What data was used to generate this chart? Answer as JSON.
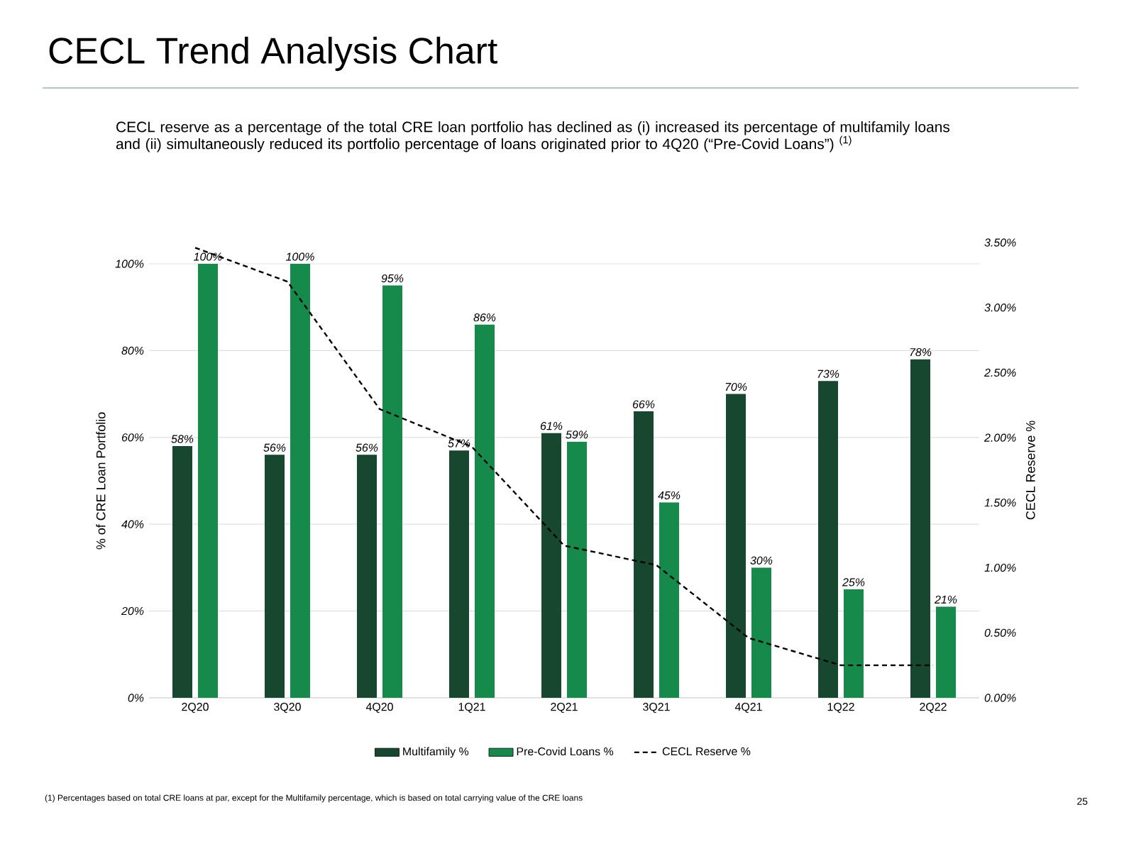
{
  "chart_data": {
    "type": "bar",
    "title": "CECL Trend Analysis Chart",
    "subtitle": "CECL reserve as a percentage of the total CRE loan portfolio has declined as (i) increased its percentage of multifamily loans and (ii) simultaneously reduced its portfolio percentage of loans originated prior to 4Q20 (“Pre-Covid Loans”) $^{(1)}$",
    "categories": [
      "2Q20",
      "3Q20",
      "4Q20",
      "1Q21",
      "2Q21",
      "3Q21",
      "4Q21",
      "1Q22",
      "2Q22"
    ],
    "series": [
      {
        "name": "Multifamily %",
        "color": "#18472f",
        "values": [
          58,
          56,
          56,
          57,
          61,
          66,
          70,
          73,
          78
        ],
        "value_labels": [
          "58%",
          "56%",
          "56%",
          "57%",
          "61%",
          "66%",
          "70%",
          "73%",
          "78%"
        ]
      },
      {
        "name": "Pre-Covid Loans %",
        "color": "#168a4a",
        "values": [
          100,
          100,
          95,
          86,
          59,
          45,
          30,
          25,
          21
        ],
        "value_labels": [
          "100%",
          "100%",
          "95%",
          "86%",
          "59%",
          "45%",
          "30%",
          "25%",
          "21%"
        ]
      },
      {
        "name": "CECL Reserve %",
        "type": "line",
        "axis": "y2",
        "color": "#000000",
        "line_style": "dashed",
        "values": [
          3.46,
          3.2,
          2.22,
          1.93,
          1.17,
          1.02,
          0.46,
          0.25,
          0.25
        ]
      }
    ],
    "ylabel": "% of CRE Loan Portfolio",
    "y2label": "CECL Reserve %",
    "ylim": [
      0,
      100
    ],
    "yticks": [
      {
        "value": 0,
        "label": "0%"
      },
      {
        "value": 20,
        "label": "20%"
      },
      {
        "value": 40,
        "label": "40%"
      },
      {
        "value": 60,
        "label": "60%"
      },
      {
        "value": 80,
        "label": "80%"
      },
      {
        "value": 100,
        "label": "100%"
      }
    ],
    "y2lim": [
      0,
      3.5
    ],
    "y2ticks": [
      {
        "value": 0,
        "label": "0.00%"
      },
      {
        "value": 0.5,
        "label": "0.50%"
      },
      {
        "value": 1,
        "label": "1.00%"
      },
      {
        "value": 1.5,
        "label": "1.50%"
      },
      {
        "value": 2,
        "label": "2.00%"
      },
      {
        "value": 2.5,
        "label": "2.50%"
      },
      {
        "value": 3,
        "label": "3.00%"
      },
      {
        "value": 3.5,
        "label": "3.50%"
      }
    ],
    "grid": "y",
    "legend": "bottom",
    "annotations": [
      "(1)    Percentages based on total CRE loans at par, except for the Multifamily percentage, which is based on total carrying value of the CRE loans",
      "25"
    ]
  }
}
